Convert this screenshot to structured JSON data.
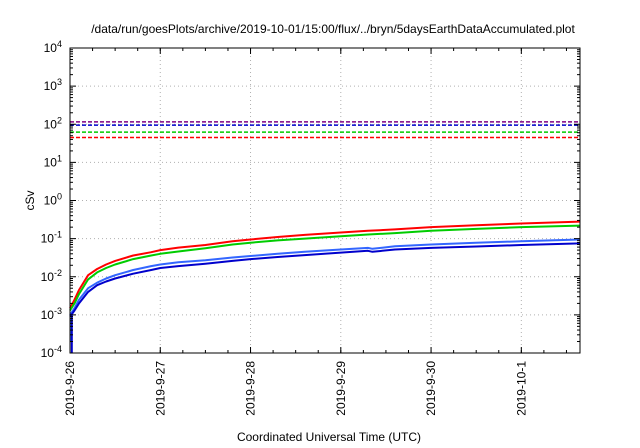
{
  "chart_data": {
    "type": "line",
    "title": "/data/run/goesPlots/archive/2019-10-01/15:00/flux/../bryn/5daysEarthDataAccumulated.plot",
    "xlabel": "Coordinated Universal Time (UTC)",
    "ylabel": "cSv",
    "y_scale": "log",
    "ylim": [
      0.0001,
      10000
    ],
    "y_ticks": [
      {
        "value": 0.0001,
        "base": "10",
        "exp": "-4"
      },
      {
        "value": 0.001,
        "base": "10",
        "exp": "-3"
      },
      {
        "value": 0.01,
        "base": "10",
        "exp": "-2"
      },
      {
        "value": 0.1,
        "base": "10",
        "exp": "-1"
      },
      {
        "value": 1,
        "base": "10",
        "exp": "0"
      },
      {
        "value": 10,
        "base": "10",
        "exp": "1"
      },
      {
        "value": 100,
        "base": "10",
        "exp": "2"
      },
      {
        "value": 1000,
        "base": "10",
        "exp": "3"
      },
      {
        "value": 10000,
        "base": "10",
        "exp": "4"
      }
    ],
    "x_unit": "days after 2019-9-26 00:00 UTC",
    "xlim": [
      0,
      5.65
    ],
    "x_ticks": [
      {
        "value": 0,
        "label": "2019-9-26"
      },
      {
        "value": 1,
        "label": "2019-9-27"
      },
      {
        "value": 2,
        "label": "2019-9-28"
      },
      {
        "value": 3,
        "label": "2019-9-29"
      },
      {
        "value": 4,
        "label": "2019-9-30"
      },
      {
        "value": 5,
        "label": "2019-10-1"
      }
    ],
    "grid": true,
    "legend": "none",
    "reference_lines": [
      {
        "color": "#800080",
        "y": 115
      },
      {
        "color": "#0000cc",
        "y": 95
      },
      {
        "color": "#00cc00",
        "y": 62
      },
      {
        "color": "#ff0000",
        "y": 45
      }
    ],
    "series": [
      {
        "color": "#ff0000",
        "x": [
          0.0,
          0.05,
          0.1,
          0.2,
          0.3,
          0.4,
          0.5,
          0.7,
          0.9,
          1.0,
          1.2,
          1.5,
          1.8,
          2.0,
          2.3,
          2.6,
          3.0,
          3.3,
          3.6,
          4.0,
          4.5,
          5.0,
          5.65
        ],
        "y": [
          0.0015,
          0.0025,
          0.0045,
          0.011,
          0.016,
          0.021,
          0.026,
          0.036,
          0.044,
          0.05,
          0.058,
          0.068,
          0.085,
          0.095,
          0.11,
          0.125,
          0.145,
          0.16,
          0.175,
          0.2,
          0.225,
          0.25,
          0.28
        ]
      },
      {
        "color": "#00cc00",
        "x": [
          0.0,
          0.05,
          0.1,
          0.2,
          0.3,
          0.4,
          0.5,
          0.7,
          0.9,
          1.0,
          1.2,
          1.5,
          1.8,
          2.0,
          2.3,
          2.6,
          3.0,
          3.3,
          3.6,
          4.0,
          4.5,
          5.0,
          5.65
        ],
        "y": [
          0.0013,
          0.002,
          0.0035,
          0.0085,
          0.013,
          0.017,
          0.021,
          0.029,
          0.036,
          0.04,
          0.046,
          0.056,
          0.07,
          0.078,
          0.09,
          0.1,
          0.115,
          0.128,
          0.14,
          0.16,
          0.18,
          0.2,
          0.22
        ]
      },
      {
        "color": "#3366ff",
        "x": [
          0.0,
          0.05,
          0.1,
          0.2,
          0.3,
          0.4,
          0.5,
          0.7,
          0.9,
          1.0,
          1.2,
          1.5,
          1.8,
          2.0,
          2.3,
          2.6,
          3.0,
          3.3,
          3.35,
          3.6,
          4.0,
          4.5,
          5.0,
          5.65
        ],
        "y": [
          0.001,
          0.0015,
          0.0025,
          0.005,
          0.007,
          0.009,
          0.011,
          0.015,
          0.019,
          0.021,
          0.024,
          0.027,
          0.032,
          0.035,
          0.04,
          0.045,
          0.052,
          0.057,
          0.054,
          0.063,
          0.07,
          0.078,
          0.085,
          0.095
        ]
      },
      {
        "color": "#0000cc",
        "x": [
          0.0,
          0.05,
          0.1,
          0.2,
          0.3,
          0.4,
          0.5,
          0.7,
          0.9,
          1.0,
          1.2,
          1.5,
          1.8,
          2.0,
          2.3,
          2.6,
          3.0,
          3.3,
          3.35,
          3.6,
          4.0,
          4.5,
          5.0,
          5.65
        ],
        "y": [
          0.0009,
          0.0013,
          0.002,
          0.004,
          0.006,
          0.0075,
          0.009,
          0.012,
          0.015,
          0.017,
          0.019,
          0.022,
          0.026,
          0.029,
          0.033,
          0.037,
          0.043,
          0.048,
          0.045,
          0.052,
          0.057,
          0.062,
          0.068,
          0.075
        ]
      }
    ],
    "startup_spike": {
      "color": "#0000cc",
      "x": 0.02,
      "y_min": 0.0001,
      "y_max": 0.001
    }
  }
}
